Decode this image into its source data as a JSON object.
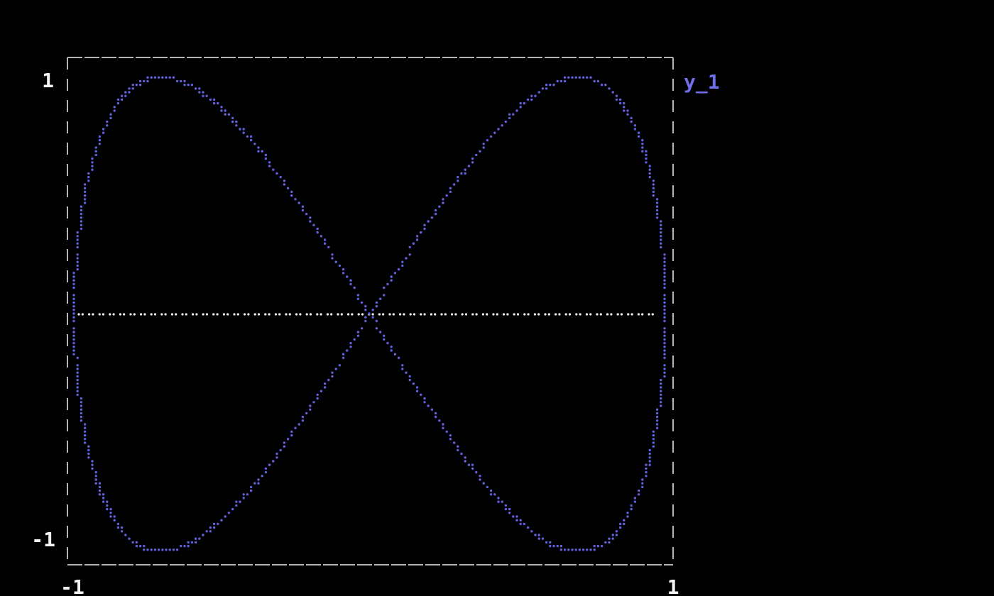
{
  "window": {
    "background": "#000000"
  },
  "chart_data": {
    "type": "scatter",
    "title": "",
    "xlim": [
      -1,
      1
    ],
    "ylim": [
      -1,
      1
    ],
    "grid": false,
    "x_tick_labels": [
      "-1",
      "1"
    ],
    "y_tick_labels": [
      "1",
      "-1"
    ],
    "legend": {
      "label": "y_1",
      "color": "#6f6fe8",
      "position": "top-right-outside"
    },
    "series": [
      {
        "name": "y_1",
        "style": "dotted-scatter",
        "color": "#6161de",
        "parametric": {
          "x_fn": "cos",
          "x_freq": 1,
          "y_fn": "sin",
          "y_freq": 2,
          "t_min": 0,
          "t_max": 6.2831853,
          "samples": 720
        },
        "description": "Lissajous bowtie curve x=cos(t), y=sin(2t)"
      },
      {
        "name": "zero-line",
        "style": "dotted-horizontal-line",
        "color": "#ffffff",
        "y": 0,
        "x_min": -1,
        "x_max": 1
      }
    ],
    "frame": {
      "style": "dashed",
      "color": "#b5b5b5"
    },
    "label_color": "#f5f5f5"
  }
}
